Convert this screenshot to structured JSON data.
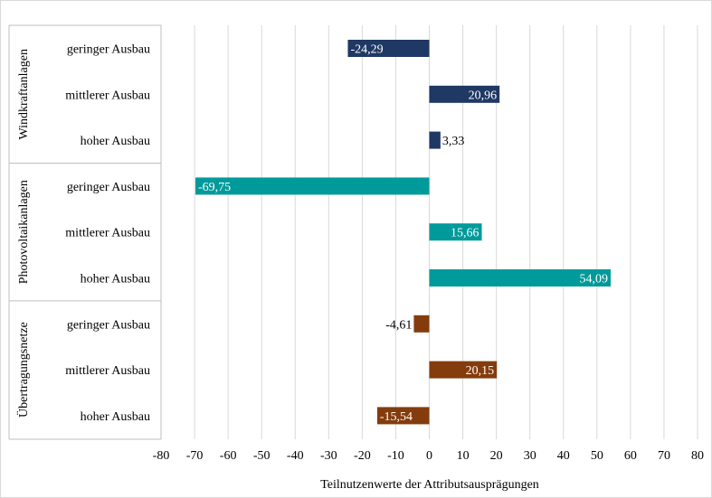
{
  "chart_data": {
    "type": "bar",
    "orientation": "horizontal",
    "xlabel": "Teilnutzenwerte der Attributsausprägungen",
    "xlim": [
      -80,
      80
    ],
    "xticks": [
      "-80",
      "-70",
      "-60",
      "-50",
      "-40",
      "-30",
      "-20",
      "-10",
      "0",
      "10",
      "20",
      "30",
      "40",
      "50",
      "60",
      "70",
      "80"
    ],
    "grid": true,
    "groups": [
      {
        "name": "Windkraftanlagen",
        "color": "#1f3864",
        "categories": [
          "geringer Ausbau",
          "mittlerer Ausbau",
          "hoher Ausbau"
        ],
        "values": [
          -24.29,
          20.96,
          3.33
        ],
        "labels": [
          "-24,29",
          "20,96",
          "3,33"
        ]
      },
      {
        "name": "Photovoltaikanlagen",
        "color": "#009a9a",
        "categories": [
          "geringer Ausbau",
          "mittlerer Ausbau",
          "hoher Ausbau"
        ],
        "values": [
          -69.75,
          15.66,
          54.09
        ],
        "labels": [
          "-69,75",
          "15,66",
          "54,09"
        ]
      },
      {
        "name": "Übertragungsnetze",
        "color": "#843c0c",
        "categories": [
          "geringer Ausbau",
          "mittlerer Ausbau",
          "hoher Ausbau"
        ],
        "values": [
          -4.61,
          20.15,
          -15.54
        ],
        "labels": [
          "-4,61",
          "20,15",
          "-15,54"
        ]
      }
    ]
  }
}
